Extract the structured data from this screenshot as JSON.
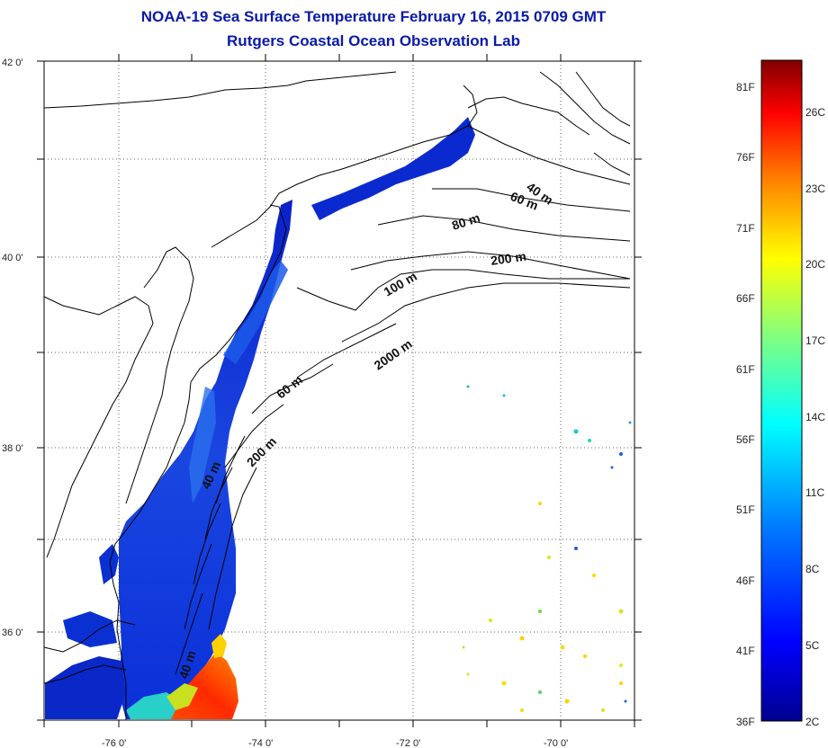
{
  "title": {
    "line1": "NOAA-19 Sea Surface Temperature February 16, 2015 0709 GMT",
    "line2": "Rutgers Coastal Ocean Observation Lab"
  },
  "map": {
    "lat_ticks": [
      "42 0'",
      "40 0'",
      "38 0'",
      "36 0'"
    ],
    "lon_ticks": [
      "-76 0'",
      "-74 0'",
      "-72 0'",
      "-70 0'"
    ],
    "contour_labels": [
      "40 m",
      "60 m",
      "80 m",
      "200 m",
      "100 m",
      "2000 m",
      "60 m",
      "200 m",
      "40 m",
      "40 m"
    ],
    "grid": true
  },
  "colorbar": {
    "fahrenheit_labels": [
      "81F",
      "76F",
      "71F",
      "66F",
      "61F",
      "56F",
      "51F",
      "46F",
      "41F",
      "36F"
    ],
    "celsius_labels": [
      "26C",
      "23C",
      "20C",
      "17C",
      "14C",
      "11C",
      "8C",
      "5C",
      "2C"
    ],
    "colors": [
      "#00008f",
      "#0000ff",
      "#0080ff",
      "#00ffff",
      "#80ff80",
      "#ffff00",
      "#ff8000",
      "#ff0000",
      "#800000"
    ]
  }
}
